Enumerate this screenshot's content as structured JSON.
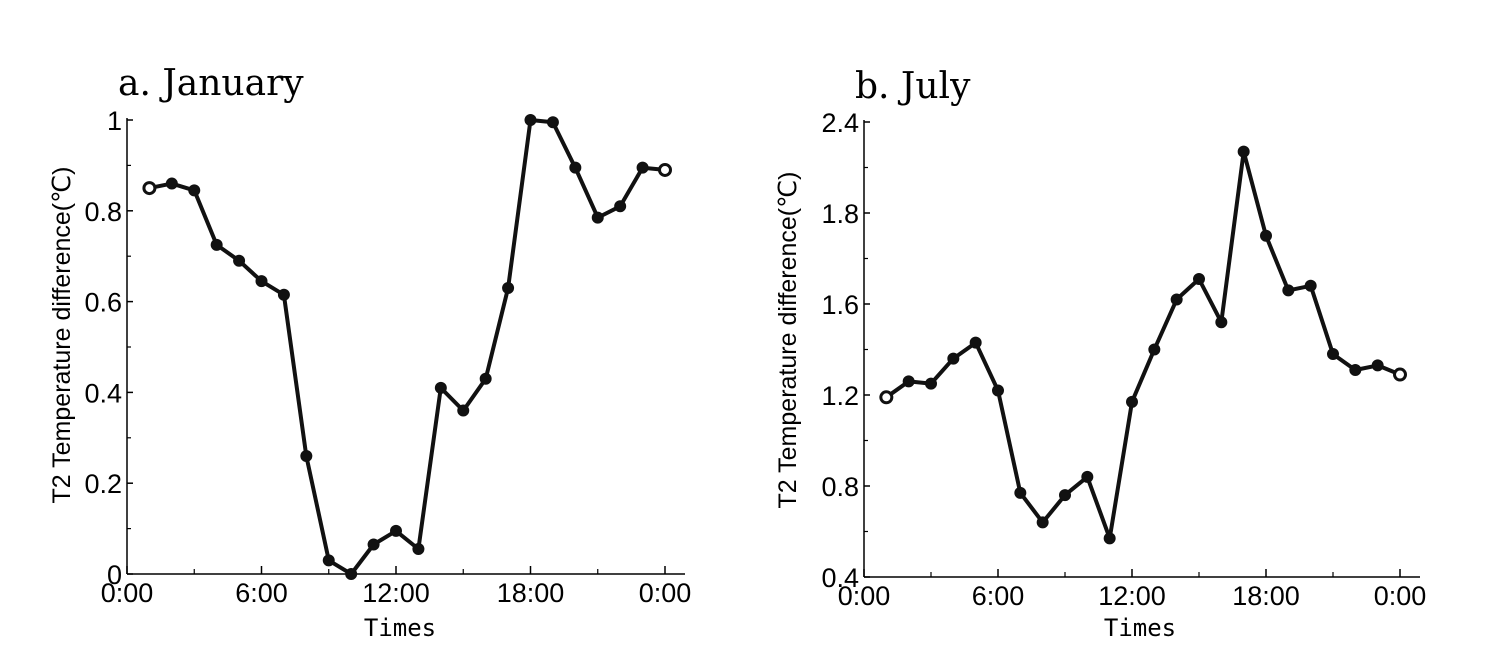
{
  "chart_data": [
    {
      "type": "line",
      "title": "a. January",
      "xlabel": "Times",
      "ylabel": "T2 Temperature difference(℃)",
      "x_tick_labels": [
        "0:00",
        "6:00",
        "12:00",
        "18:00",
        "0:00"
      ],
      "y_tick_labels": [
        "0",
        "0.2",
        "0.4",
        "0.6",
        "0.8",
        "1"
      ],
      "ylim": [
        0,
        1
      ],
      "xlim": [
        0,
        24
      ],
      "x": [
        1,
        2,
        3,
        4,
        5,
        6,
        7,
        8,
        9,
        10,
        11,
        12,
        13,
        14,
        15,
        16,
        17,
        18,
        19,
        20,
        21,
        22,
        23,
        24
      ],
      "values": [
        0.85,
        0.86,
        0.845,
        0.725,
        0.69,
        0.645,
        0.615,
        0.26,
        0.03,
        0.0,
        0.065,
        0.095,
        0.055,
        0.41,
        0.36,
        0.43,
        0.63,
        1.0,
        0.995,
        0.895,
        0.785,
        0.81,
        0.895,
        0.89
      ],
      "grid": false
    },
    {
      "type": "line",
      "title": "b. July",
      "xlabel": "Times",
      "ylabel": "T2 Temperature difference(℃)",
      "x_tick_labels": [
        "0:00",
        "6:00",
        "12:00",
        "18:00",
        "0:00"
      ],
      "y_tick_labels": [
        "0.4",
        "0.8",
        "1.2",
        "1.6",
        "1.8",
        "2.4"
      ],
      "ylim": [
        0.4,
        2.4
      ],
      "xlim": [
        0,
        24
      ],
      "x": [
        1,
        2,
        3,
        4,
        5,
        6,
        7,
        8,
        9,
        10,
        11,
        12,
        13,
        14,
        15,
        16,
        17,
        18,
        19,
        20,
        21,
        22,
        23,
        24
      ],
      "values": [
        1.19,
        1.26,
        1.25,
        1.36,
        1.43,
        1.22,
        0.77,
        0.64,
        0.76,
        0.84,
        0.57,
        1.17,
        1.4,
        1.62,
        1.71,
        1.52,
        2.27,
        1.9,
        1.66,
        1.68,
        1.38,
        1.31,
        1.33,
        1.29
      ],
      "grid": false
    }
  ]
}
